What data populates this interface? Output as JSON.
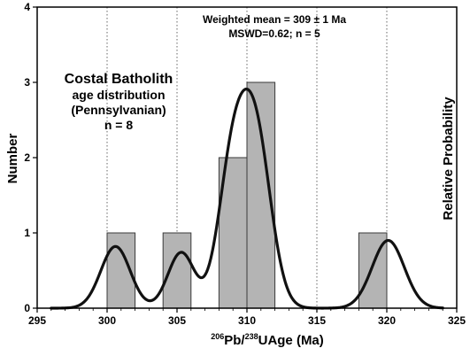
{
  "chart_data": {
    "type": "bar",
    "title": "",
    "xlabel": {
      "sup1": "206",
      "mid1": "Pb/",
      "sup2": "238",
      "mid2": "UAge (Ma)"
    },
    "ylabel": "Number",
    "y2label": "Relative Probability",
    "xlim": [
      295,
      325
    ],
    "ylim": [
      0,
      4
    ],
    "xticks": [
      295,
      300,
      305,
      310,
      315,
      320,
      325
    ],
    "yticks": [
      0,
      1,
      2,
      3,
      4
    ],
    "vertical_gridlines": [
      300,
      305,
      310,
      315,
      320
    ],
    "bin_width": 2,
    "bars": [
      {
        "x_start": 300,
        "x_end": 302,
        "value": 1
      },
      {
        "x_start": 304,
        "x_end": 306,
        "value": 1
      },
      {
        "x_start": 308,
        "x_end": 310,
        "value": 2
      },
      {
        "x_start": 310,
        "x_end": 312,
        "value": 3
      },
      {
        "x_start": 318,
        "x_end": 320,
        "value": 1
      }
    ],
    "probability_curve": {
      "components": [
        {
          "center": 300.6,
          "sigma": 1.05,
          "amplitude": 0.82
        },
        {
          "center": 305.3,
          "sigma": 0.95,
          "amplitude": 0.74
        },
        {
          "center": 308.9,
          "sigma": 1.0,
          "amplitude": 1.7
        },
        {
          "center": 310.6,
          "sigma": 1.1,
          "amplitude": 2.3
        },
        {
          "center": 320.1,
          "sigma": 1.15,
          "amplitude": 0.9
        }
      ],
      "x_range": [
        296,
        324
      ]
    },
    "annotations": {
      "weighted_mean": "Weighted mean = 309 ± 1 Ma",
      "mswd": "MSWD=0.62; n = 5",
      "batholith_line1": "Costal Batholith",
      "batholith_line2": "age distribution",
      "batholith_line3": "(Pennsylvanian)",
      "batholith_line4": "n = 8"
    },
    "colors": {
      "bar_fill": "#b4b4b4",
      "bar_stroke": "#3a3a3a",
      "curve": "#111111",
      "grid": "#666666"
    }
  }
}
